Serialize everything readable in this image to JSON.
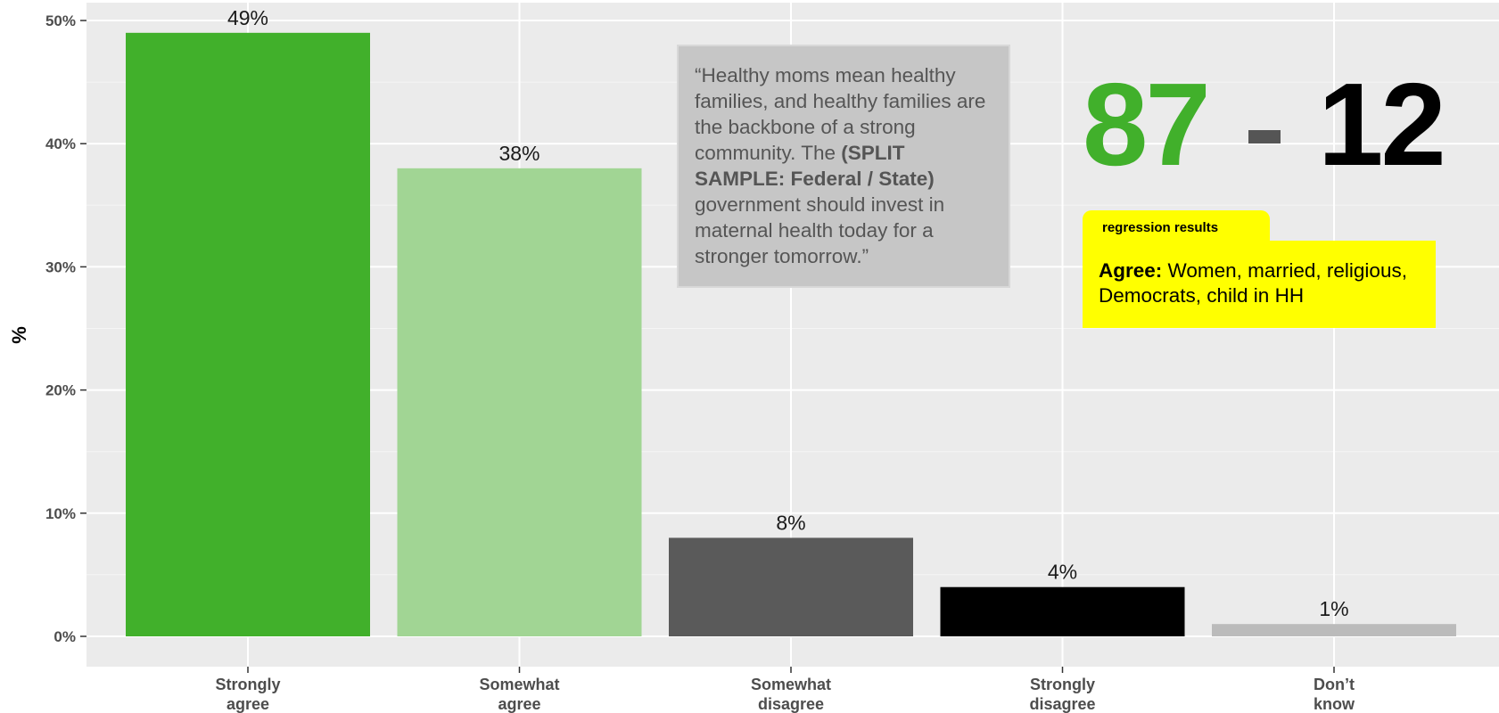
{
  "chart_data": {
    "type": "bar",
    "categories": [
      "Strongly agree",
      "Somewhat agree",
      "Somewhat disagree",
      "Strongly disagree",
      "Don't know"
    ],
    "category_lines": [
      [
        "Strongly",
        "agree"
      ],
      [
        "Somewhat",
        "agree"
      ],
      [
        "Somewhat",
        "disagree"
      ],
      [
        "Strongly",
        "disagree"
      ],
      [
        "Don’t",
        "know"
      ]
    ],
    "values": [
      49,
      38,
      8,
      4,
      1
    ],
    "value_labels": [
      "49%",
      "38%",
      "8%",
      "4%",
      "1%"
    ],
    "colors": [
      "#41b02b",
      "#a1d594",
      "#5a5a5a",
      "#000000",
      "#bbbbbb"
    ],
    "ylabel": "%",
    "xlabel": "",
    "ylim": [
      0,
      50
    ],
    "yticks": [
      0,
      10,
      20,
      30,
      40,
      50
    ],
    "ytick_labels": [
      "0%",
      "10%",
      "20%",
      "30%",
      "40%",
      "50%"
    ],
    "grid": true,
    "background": "#ebebeb"
  },
  "quote": {
    "lead": "“Healthy moms mean healthy families, and healthy families are the backbone of a strong community. The ",
    "bold": "(SPLIT SAMPLE: Federal / State)",
    "tail": " government should invest in maternal health today for a stronger tomorrow.”"
  },
  "score": {
    "agree": "87",
    "disagree": "12",
    "agree_color": "#41b02b",
    "disagree_color": "#000000"
  },
  "regression": {
    "tab_label": "regression results",
    "label": "Agree:",
    "text": " Women, married, religious, Democrats, child in HH"
  }
}
